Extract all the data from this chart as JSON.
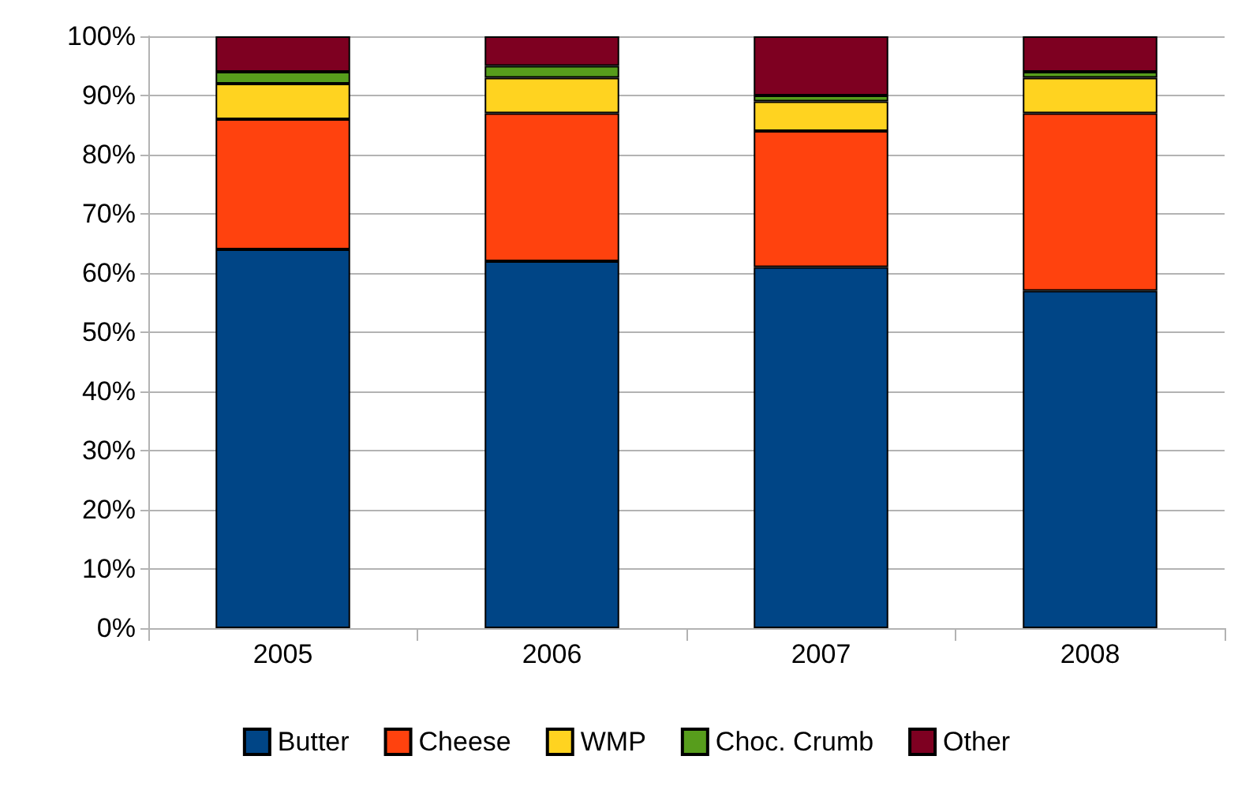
{
  "chart_data": {
    "type": "bar",
    "stacked": true,
    "categories": [
      "2005",
      "2006",
      "2007",
      "2008"
    ],
    "series": [
      {
        "name": "Butter",
        "color": "#004586",
        "values": [
          64,
          62,
          61,
          57
        ]
      },
      {
        "name": "Cheese",
        "color": "#ff420e",
        "values": [
          22,
          25,
          23,
          30
        ]
      },
      {
        "name": "WMP",
        "color": "#ffd320",
        "values": [
          6,
          6,
          5,
          6
        ]
      },
      {
        "name": "Choc. Crumb",
        "color": "#579d1c",
        "values": [
          2,
          2,
          1,
          1
        ]
      },
      {
        "name": "Other",
        "color": "#7e0021",
        "values": [
          6,
          5,
          10,
          6
        ]
      }
    ],
    "ylim": [
      0,
      100
    ],
    "yticks": [
      {
        "value": 0,
        "label": "0%"
      },
      {
        "value": 10,
        "label": "10%"
      },
      {
        "value": 20,
        "label": "20%"
      },
      {
        "value": 30,
        "label": "30%"
      },
      {
        "value": 40,
        "label": "40%"
      },
      {
        "value": 50,
        "label": "50%"
      },
      {
        "value": 60,
        "label": "60%"
      },
      {
        "value": 70,
        "label": "70%"
      },
      {
        "value": 80,
        "label": "80%"
      },
      {
        "value": 90,
        "label": "90%"
      },
      {
        "value": 100,
        "label": "100%"
      }
    ],
    "grid": "y",
    "legend": "bottom"
  }
}
